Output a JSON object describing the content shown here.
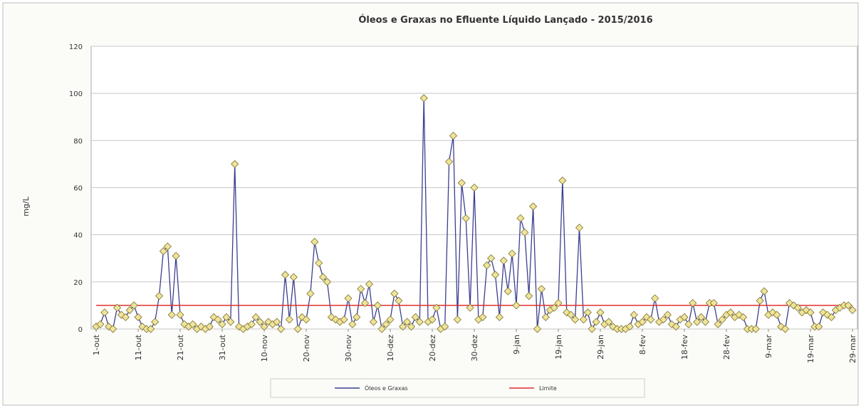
{
  "chart_data": {
    "type": "line",
    "title": "Óleos e Graxas no Efluente Líquido Lançado - 2015/2016",
    "ylabel": "mg/L",
    "categories": [
      "1-out",
      null,
      null,
      null,
      null,
      null,
      null,
      null,
      null,
      null,
      "11-out",
      null,
      null,
      null,
      null,
      null,
      null,
      null,
      null,
      null,
      "21-out",
      null,
      null,
      null,
      null,
      null,
      null,
      null,
      null,
      null,
      "31-out",
      null,
      null,
      null,
      null,
      null,
      null,
      null,
      null,
      null,
      "10-nov",
      null,
      null,
      null,
      null,
      null,
      null,
      null,
      null,
      null,
      "20-nov",
      null,
      null,
      null,
      null,
      null,
      null,
      null,
      null,
      null,
      "30-nov",
      null,
      null,
      null,
      null,
      null,
      null,
      null,
      null,
      null,
      "10-dez",
      null,
      null,
      null,
      null,
      null,
      null,
      null,
      null,
      null,
      "20-dez",
      null,
      null,
      null,
      null,
      null,
      null,
      null,
      null,
      null,
      "30-dez",
      null,
      null,
      null,
      null,
      null,
      null,
      null,
      null,
      null,
      "9-jan",
      null,
      null,
      null,
      null,
      null,
      null,
      null,
      null,
      null,
      "19-jan",
      null,
      null,
      null,
      null,
      null,
      null,
      null,
      null,
      null,
      "29-jan",
      null,
      null,
      null,
      null,
      null,
      null,
      null,
      null,
      null,
      "8-fev",
      null,
      null,
      null,
      null,
      null,
      null,
      null,
      null,
      null,
      "18-fev",
      null,
      null,
      null,
      null,
      null,
      null,
      null,
      null,
      null,
      "28-fev",
      null,
      null,
      null,
      null,
      null,
      null,
      null,
      null,
      null,
      "9-mar",
      null,
      null,
      null,
      null,
      null,
      null,
      null,
      null,
      null,
      "19-mar",
      null,
      null,
      null,
      null,
      null,
      null,
      null,
      null,
      null,
      "29-mar"
    ],
    "series": [
      {
        "name": "Óleos e Graxas",
        "color": "#3b3f8f",
        "marker": "diamond",
        "values": [
          1,
          2,
          7,
          1,
          0,
          9,
          6,
          5,
          8,
          10,
          5,
          1,
          0,
          0,
          3,
          14,
          33,
          35,
          6,
          31,
          6,
          2,
          1,
          2,
          0,
          1,
          0,
          1,
          5,
          4,
          2,
          5,
          3,
          70,
          1,
          0,
          1,
          2,
          5,
          3,
          1,
          3,
          2,
          3,
          0,
          23,
          4,
          22,
          0,
          5,
          4,
          15,
          37,
          28,
          22,
          20,
          5,
          4,
          3,
          4,
          13,
          2,
          5,
          17,
          11,
          19,
          3,
          10,
          0,
          2,
          4,
          15,
          12,
          1,
          3,
          1,
          5,
          3,
          98,
          3,
          4,
          9,
          0,
          1,
          71,
          82,
          4,
          62,
          47,
          9,
          60,
          4,
          5,
          27,
          30,
          23,
          5,
          29,
          16,
          32,
          10,
          47,
          41,
          14,
          52,
          0,
          17,
          5,
          8,
          9,
          11,
          63,
          7,
          6,
          4,
          43,
          4,
          7,
          0,
          3,
          7,
          2,
          3,
          1,
          0,
          0,
          0,
          1,
          6,
          2,
          3,
          5,
          4,
          13,
          3,
          4,
          6,
          2,
          1,
          4,
          5,
          2,
          11,
          3,
          5,
          3,
          11,
          11,
          2,
          4,
          6,
          7,
          5,
          6,
          5,
          0,
          0,
          0,
          12,
          16,
          6,
          7,
          6,
          1,
          0,
          11,
          10,
          9,
          7,
          8,
          7,
          1,
          1,
          7,
          6,
          5,
          8,
          9,
          10,
          10,
          8
        ]
      },
      {
        "name": "Limite",
        "color": "#e0302c",
        "values": [
          10,
          10,
          10,
          10,
          10,
          10,
          10,
          10,
          10,
          10,
          10,
          10,
          10,
          10,
          10,
          10,
          10,
          10,
          10,
          10,
          10,
          10,
          10,
          10,
          10,
          10,
          10,
          10,
          10,
          10,
          10,
          10,
          10,
          10,
          10,
          10,
          10,
          10,
          10,
          10,
          10,
          10,
          10,
          10,
          10,
          10,
          10,
          10,
          10,
          10,
          10,
          10,
          10,
          10,
          10,
          10,
          10,
          10,
          10,
          10,
          10,
          10,
          10,
          10,
          10,
          10,
          10,
          10,
          10,
          10,
          10,
          10,
          10,
          10,
          10,
          10,
          10,
          10,
          10,
          10,
          10,
          10,
          10,
          10,
          10,
          10,
          10,
          10,
          10,
          10,
          10,
          10,
          10,
          10,
          10,
          10,
          10,
          10,
          10,
          10,
          10,
          10,
          10,
          10,
          10,
          10,
          10,
          10,
          10,
          10,
          10,
          10,
          10,
          10,
          10,
          10,
          10,
          10,
          10,
          10,
          10,
          10,
          10,
          10,
          10,
          10,
          10,
          10,
          10,
          10,
          10,
          10,
          10,
          10,
          10,
          10,
          10,
          10,
          10,
          10,
          10,
          10,
          10,
          10,
          10,
          10,
          10,
          10,
          10,
          10,
          10,
          10,
          10,
          10,
          10,
          10,
          10,
          10,
          10,
          10,
          10,
          10,
          10,
          10,
          10,
          10,
          10,
          10,
          10,
          10,
          10,
          10,
          10,
          10,
          10,
          10,
          10,
          10,
          10,
          10,
          10
        ]
      }
    ],
    "ylim": [
      0,
      120
    ],
    "yticks": [
      0,
      20,
      40,
      60,
      80,
      100,
      120
    ],
    "grid": true,
    "legend": "bottom"
  }
}
